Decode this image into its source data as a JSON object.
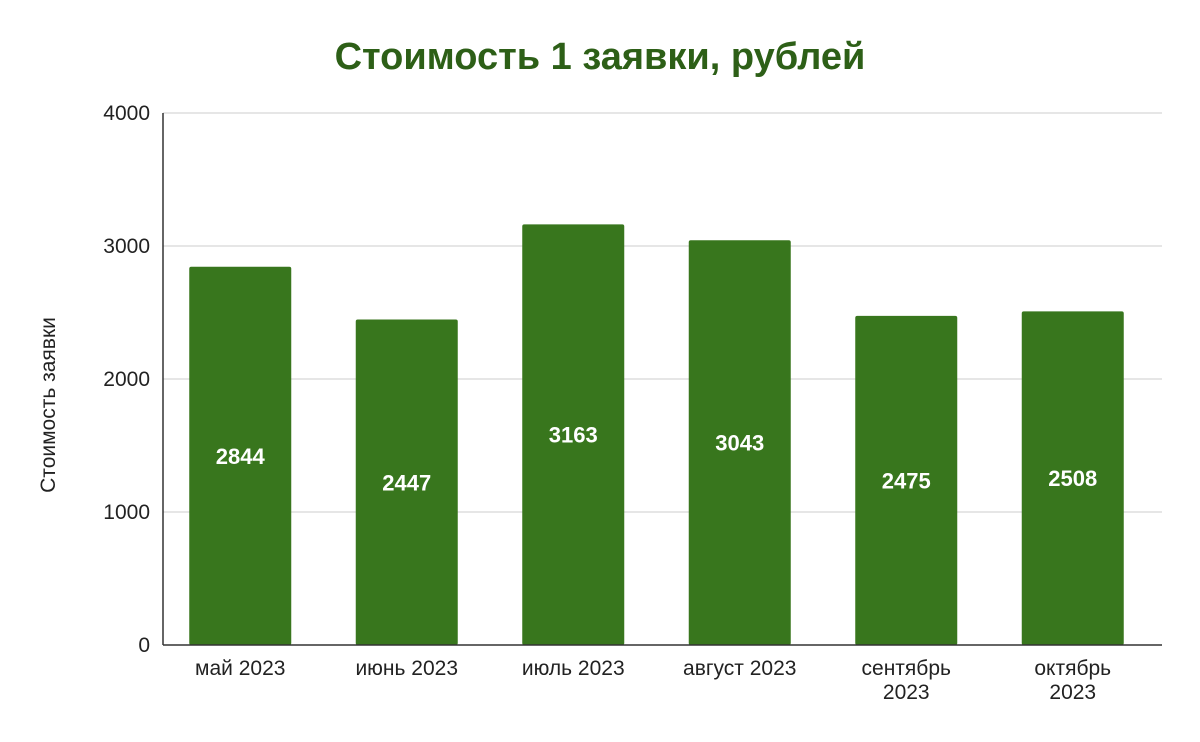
{
  "chart_data": {
    "type": "bar",
    "title": "Стоимость 1 заявки, рублей",
    "xlabel": "",
    "ylabel": "Стоимость заявки",
    "categories": [
      [
        "май 2023"
      ],
      [
        "июнь 2023"
      ],
      [
        "июль 2023"
      ],
      [
        "август 2023"
      ],
      [
        "сентябрь",
        "2023"
      ],
      [
        "октябрь",
        "2023"
      ]
    ],
    "values": [
      2844,
      2447,
      3163,
      3043,
      2475,
      2508
    ],
    "value_labels": [
      "2844",
      "2447",
      "3163",
      "3043",
      "2475",
      "2508"
    ],
    "ylim": [
      0,
      4000
    ],
    "yticks": [
      0,
      1000,
      2000,
      3000,
      4000
    ],
    "ytick_labels": [
      "0",
      "1000",
      "2000",
      "3000",
      "4000"
    ],
    "grid": true,
    "legend": "none",
    "colors": {
      "bar": "#38761d",
      "title": "#2d5f17",
      "grid": "#cccccc",
      "axis": "#333333",
      "value_label": "#ffffff"
    }
  }
}
